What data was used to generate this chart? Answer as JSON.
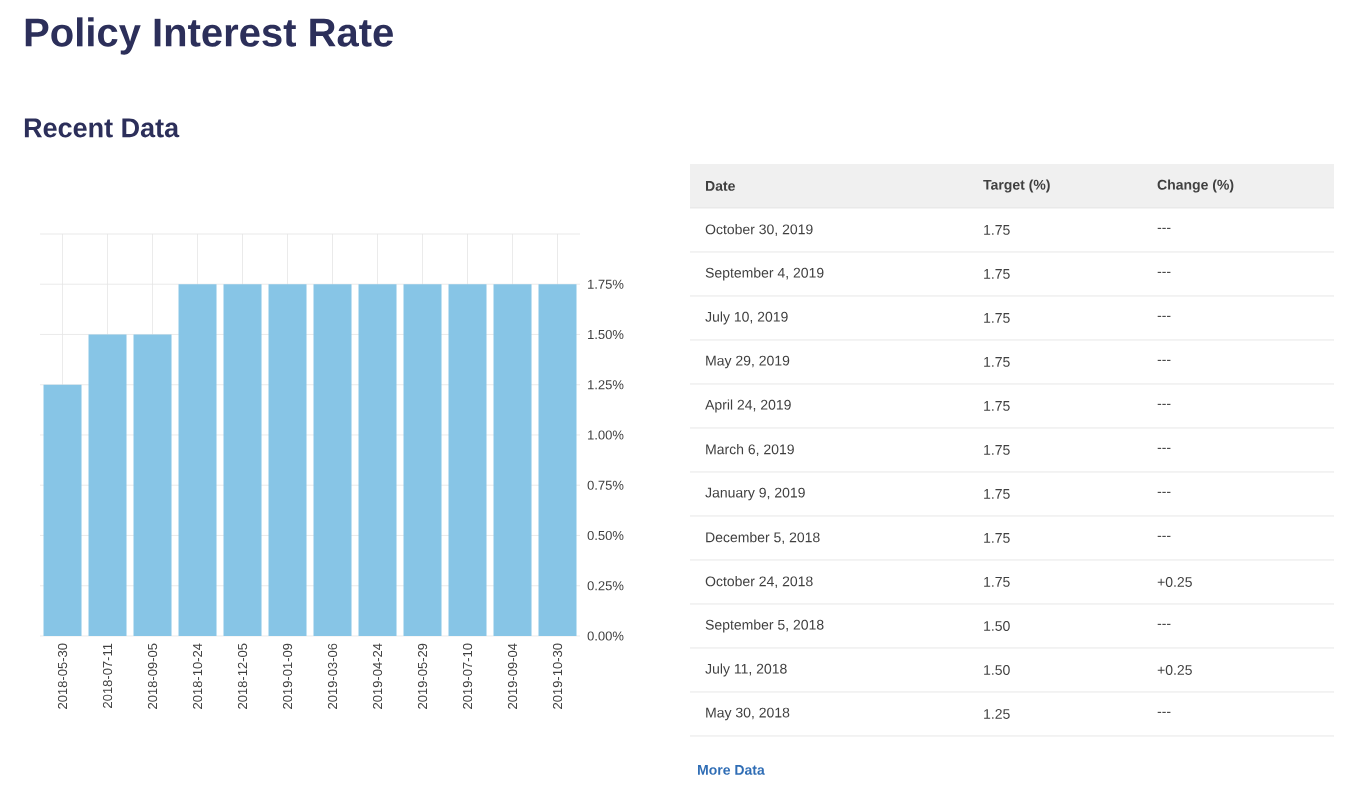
{
  "chart_data": [
    {
      "type": "bar",
      "title": "Policy Interest Rate",
      "subtitle": "Recent Data",
      "categories": [
        "2018-05-30",
        "2018-07-11",
        "2018-09-05",
        "2018-10-24",
        "2018-12-05",
        "2019-01-09",
        "2019-03-06",
        "2019-04-24",
        "2019-05-29",
        "2019-07-10",
        "2019-09-04",
        "2019-10-30"
      ],
      "values": [
        1.25,
        1.5,
        1.5,
        1.75,
        1.75,
        1.75,
        1.75,
        1.75,
        1.75,
        1.75,
        1.75,
        1.75
      ],
      "color": "#87c5e6",
      "ylim": [
        0,
        2
      ],
      "yticks": [
        {
          "value": 0,
          "label": "0.00%"
        },
        {
          "value": 0.25,
          "label": "0.25%"
        },
        {
          "value": 0.5,
          "label": "0.50%"
        },
        {
          "value": 0.75,
          "label": "0.75%"
        },
        {
          "value": 1,
          "label": "1.00%"
        },
        {
          "value": 1.25,
          "label": "1.25%"
        },
        {
          "value": 1.5,
          "label": "1.50%"
        },
        {
          "value": 1.75,
          "label": "1.75%"
        },
        {
          "value": 2,
          "label": null
        }
      ],
      "grid": true
    },
    {
      "type": "other",
      "categories": [
        "Date",
        "Target (%)",
        "Change (%)"
      ],
      "annotations": [
        "October 30, 2019",
        "1.75",
        "---",
        "September 4, 2019",
        "1.75",
        "---",
        "July 10, 2019",
        "1.75",
        "---",
        "May 29, 2019",
        "1.75",
        "---",
        "April 24, 2019",
        "1.75",
        "---",
        "March 6, 2019",
        "1.75",
        "---",
        "January 9, 2019",
        "1.75",
        "---",
        "December 5, 2018",
        "1.75",
        "---",
        "October 24, 2018",
        "1.75",
        "+0.25",
        "September 5, 2018",
        "1.50",
        "---",
        "July 11, 2018",
        "1.50",
        "+0.25",
        "May 30, 2018",
        "1.25",
        "---",
        "More Data"
      ]
    }
  ]
}
